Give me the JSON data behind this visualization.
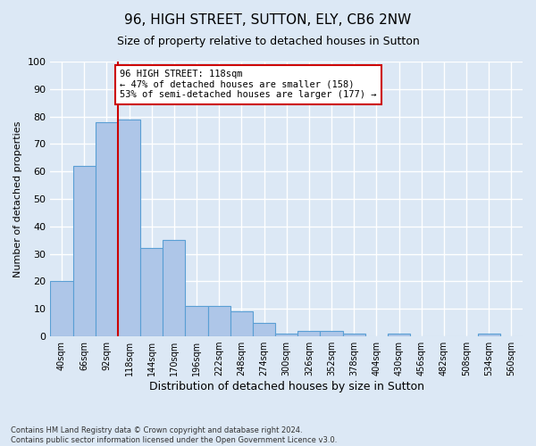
{
  "title": "96, HIGH STREET, SUTTON, ELY, CB6 2NW",
  "subtitle": "Size of property relative to detached houses in Sutton",
  "xlabel": "Distribution of detached houses by size in Sutton",
  "ylabel": "Number of detached properties",
  "bin_labels": [
    "40sqm",
    "66sqm",
    "92sqm",
    "118sqm",
    "144sqm",
    "170sqm",
    "196sqm",
    "222sqm",
    "248sqm",
    "274sqm",
    "300sqm",
    "326sqm",
    "352sqm",
    "378sqm",
    "404sqm",
    "430sqm",
    "456sqm",
    "482sqm",
    "508sqm",
    "534sqm",
    "560sqm"
  ],
  "bar_values": [
    20,
    62,
    78,
    79,
    32,
    35,
    11,
    11,
    9,
    5,
    1,
    2,
    2,
    1,
    0,
    1,
    0,
    0,
    0,
    1,
    0
  ],
  "bar_color": "#aec6e8",
  "bar_edge_color": "#5a9fd4",
  "ylim": [
    0,
    100
  ],
  "yticks": [
    0,
    10,
    20,
    30,
    40,
    50,
    60,
    70,
    80,
    90,
    100
  ],
  "annotation_text": "96 HIGH STREET: 118sqm\n← 47% of detached houses are smaller (158)\n53% of semi-detached houses are larger (177) →",
  "annotation_box_color": "#ffffff",
  "annotation_box_edge": "#cc0000",
  "footer_line1": "Contains HM Land Registry data © Crown copyright and database right 2024.",
  "footer_line2": "Contains public sector information licensed under the Open Government Licence v3.0.",
  "background_color": "#dce8f5",
  "grid_color": "#ffffff",
  "red_line_color": "#cc0000",
  "title_fontsize": 11,
  "subtitle_fontsize": 9,
  "ylabel_fontsize": 8,
  "xlabel_fontsize": 9
}
